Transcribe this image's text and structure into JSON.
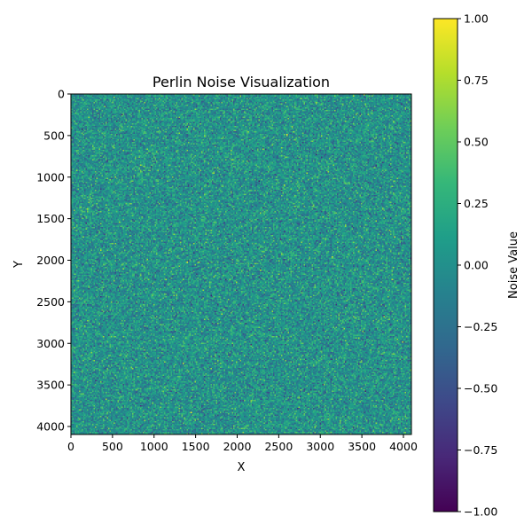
{
  "chart_data": {
    "type": "heatmap",
    "title": "Perlin Noise Visualization",
    "xlabel": "X",
    "ylabel": "Y",
    "xlim": [
      0,
      4096
    ],
    "ylim": [
      4096,
      0
    ],
    "x_ticks": [
      0,
      500,
      1000,
      1500,
      2000,
      2500,
      3000,
      3500,
      4000
    ],
    "x_tick_labels": [
      "0",
      "500",
      "1000",
      "1500",
      "2000",
      "2500",
      "3000",
      "3500",
      "4000"
    ],
    "y_ticks": [
      0,
      500,
      1000,
      1500,
      2000,
      2500,
      3000,
      3500,
      4000
    ],
    "y_tick_labels": [
      "0",
      "500",
      "1000",
      "1500",
      "2000",
      "2500",
      "3000",
      "3500",
      "4000"
    ],
    "colormap": "viridis",
    "colorbar": {
      "label": "Noise Value",
      "range": [
        -1.0,
        1.0
      ],
      "ticks": [
        -1.0,
        -0.75,
        -0.5,
        -0.25,
        0.0,
        0.25,
        0.5,
        0.75,
        1.0
      ],
      "tick_labels": [
        "−1.00",
        "−0.75",
        "−0.50",
        "−0.25",
        "0.00",
        "0.25",
        "0.50",
        "0.75",
        "1.00"
      ]
    },
    "value_distribution": {
      "mean": 0.02,
      "std": 0.22
    },
    "grid": false,
    "colors": {
      "viridis": [
        "#440154",
        "#482878",
        "#3e4989",
        "#31688e",
        "#26828e",
        "#1f9e89",
        "#35b779",
        "#6ece58",
        "#b5de2b",
        "#fde725"
      ]
    }
  }
}
